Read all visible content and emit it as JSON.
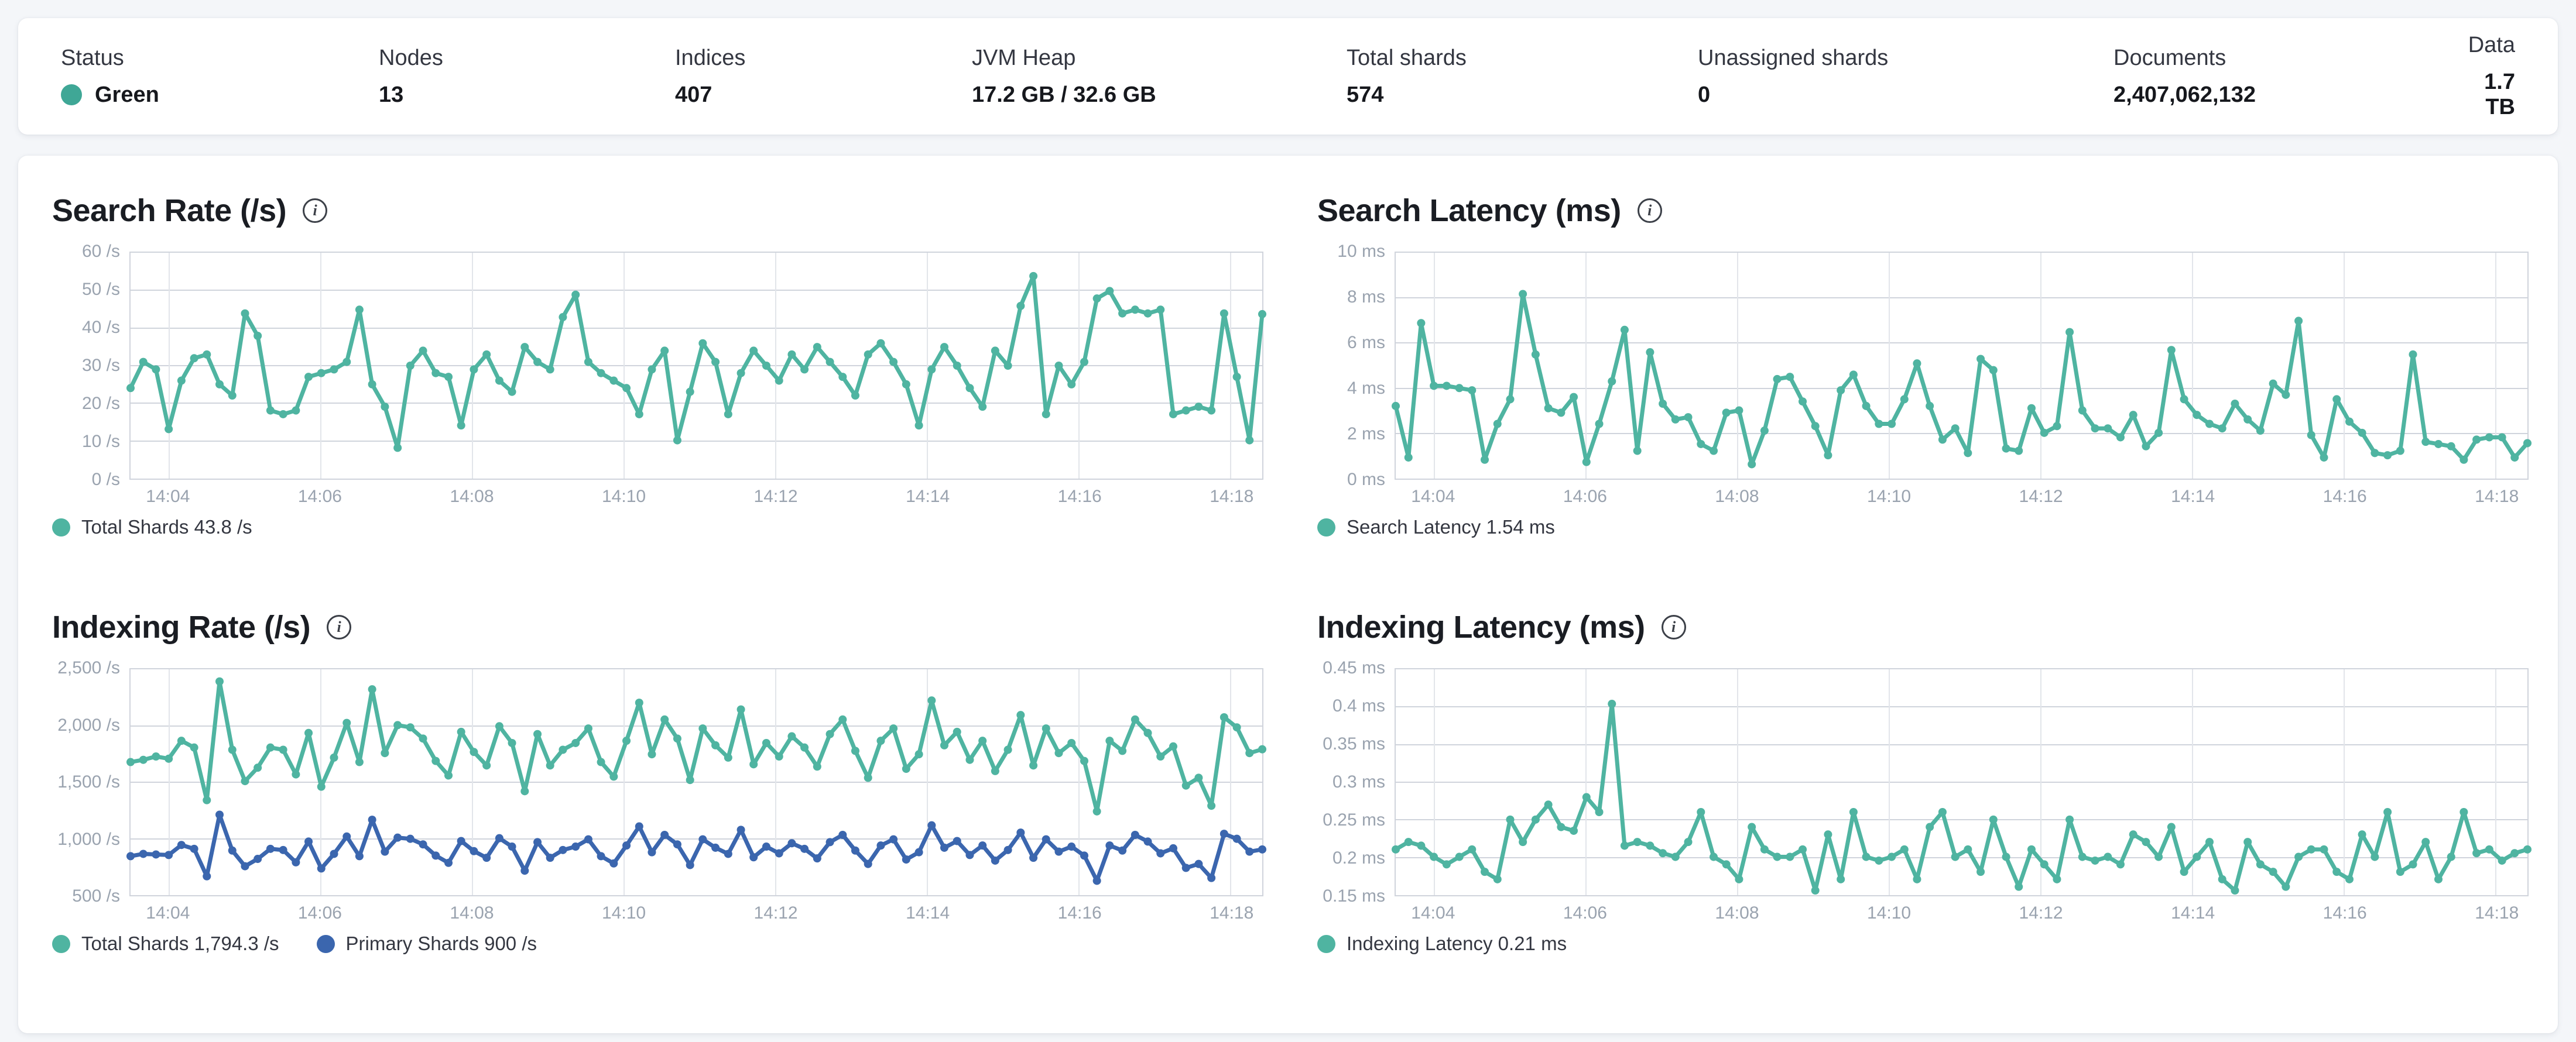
{
  "status_bar": {
    "status_color": "#3fa796",
    "stats": [
      {
        "label": "Status",
        "value": "Green",
        "has_dot": true
      },
      {
        "label": "Nodes",
        "value": "13"
      },
      {
        "label": "Indices",
        "value": "407"
      },
      {
        "label": "JVM Heap",
        "value": "17.2 GB / 32.6 GB"
      },
      {
        "label": "Total shards",
        "value": "574"
      },
      {
        "label": "Unassigned shards",
        "value": "0"
      },
      {
        "label": "Documents",
        "value": "2,407,062,132"
      },
      {
        "label": "Data",
        "value": "1.7 TB"
      }
    ]
  },
  "info_icon_glyph": "i",
  "chart_data": [
    {
      "id": "search-rate",
      "type": "line",
      "title": "Search Rate (/s)",
      "ylabel": "/s",
      "ylim": [
        0,
        60
      ],
      "grid": true,
      "legend_position": "bottom",
      "xrange": [
        "14:03:30",
        "14:18:25"
      ],
      "yticks": [
        {
          "v": 60,
          "label": "60 /s"
        },
        {
          "v": 50,
          "label": "50 /s"
        },
        {
          "v": 40,
          "label": "40 /s"
        },
        {
          "v": 30,
          "label": "30 /s"
        },
        {
          "v": 20,
          "label": "20 /s"
        },
        {
          "v": 10,
          "label": "10 /s"
        },
        {
          "v": 0,
          "label": "0 /s"
        }
      ],
      "xticks": [
        {
          "f": 0.034,
          "label": "14:04"
        },
        {
          "f": 0.168,
          "label": "14:06"
        },
        {
          "f": 0.302,
          "label": "14:08"
        },
        {
          "f": 0.436,
          "label": "14:10"
        },
        {
          "f": 0.57,
          "label": "14:12"
        },
        {
          "f": 0.704,
          "label": "14:14"
        },
        {
          "f": 0.838,
          "label": "14:16"
        },
        {
          "f": 0.972,
          "label": "14:18"
        }
      ],
      "series": [
        {
          "name": "Total Shards",
          "color": "#4fb4a1",
          "values": [
            24,
            31,
            29,
            13,
            26,
            32,
            33,
            25,
            22,
            44,
            38,
            18,
            17,
            18,
            27,
            28,
            29,
            31,
            45,
            25,
            19,
            8,
            30,
            34,
            28,
            27,
            14,
            29,
            33,
            26,
            23,
            35,
            31,
            29,
            43,
            49,
            31,
            28,
            26,
            24,
            17,
            29,
            34,
            10,
            23,
            36,
            31,
            17,
            28,
            34,
            30,
            26,
            33,
            29,
            35,
            31,
            27,
            22,
            33,
            36,
            31,
            25,
            14,
            29,
            35,
            30,
            24,
            19,
            34,
            30,
            46,
            54,
            17,
            30,
            25,
            31,
            48,
            50,
            44,
            45,
            44,
            45,
            17,
            18,
            19,
            18,
            44,
            27,
            10,
            43.8
          ]
        }
      ],
      "legend": [
        {
          "label": "Total Shards 43.8 /s",
          "color": "#4fb4a1"
        }
      ]
    },
    {
      "id": "search-latency",
      "type": "line",
      "title": "Search Latency (ms)",
      "ylabel": "ms",
      "ylim": [
        0,
        10
      ],
      "grid": true,
      "legend_position": "bottom",
      "xrange": [
        "14:03:30",
        "14:18:25"
      ],
      "yticks": [
        {
          "v": 10,
          "label": "10 ms"
        },
        {
          "v": 8,
          "label": "8 ms"
        },
        {
          "v": 6,
          "label": "6 ms"
        },
        {
          "v": 4,
          "label": "4 ms"
        },
        {
          "v": 2,
          "label": "2 ms"
        },
        {
          "v": 0,
          "label": "0 ms"
        }
      ],
      "xticks": [
        {
          "f": 0.034,
          "label": "14:04"
        },
        {
          "f": 0.168,
          "label": "14:06"
        },
        {
          "f": 0.302,
          "label": "14:08"
        },
        {
          "f": 0.436,
          "label": "14:10"
        },
        {
          "f": 0.57,
          "label": "14:12"
        },
        {
          "f": 0.704,
          "label": "14:14"
        },
        {
          "f": 0.838,
          "label": "14:16"
        },
        {
          "f": 0.972,
          "label": "14:18"
        }
      ],
      "series": [
        {
          "name": "Search Latency",
          "color": "#4fb4a1",
          "values": [
            3.2,
            0.9,
            6.9,
            4.1,
            4.1,
            4.0,
            3.9,
            0.8,
            2.4,
            3.5,
            8.2,
            5.5,
            3.1,
            2.9,
            3.6,
            0.7,
            2.4,
            4.3,
            6.6,
            1.2,
            5.6,
            3.3,
            2.6,
            2.7,
            1.5,
            1.2,
            2.9,
            3.0,
            0.6,
            2.1,
            4.4,
            4.5,
            3.4,
            2.3,
            1.0,
            3.9,
            4.6,
            3.2,
            2.4,
            2.4,
            3.5,
            5.1,
            3.2,
            1.7,
            2.2,
            1.1,
            5.3,
            4.8,
            1.3,
            1.2,
            3.1,
            2.0,
            2.3,
            6.5,
            3.0,
            2.2,
            2.2,
            1.8,
            2.8,
            1.4,
            2.0,
            5.7,
            3.5,
            2.8,
            2.4,
            2.2,
            3.3,
            2.6,
            2.1,
            4.2,
            3.7,
            7.0,
            1.9,
            0.9,
            3.5,
            2.5,
            2.0,
            1.1,
            1.0,
            1.2,
            5.5,
            1.6,
            1.5,
            1.4,
            0.8,
            1.7,
            1.8,
            1.8,
            0.9,
            1.54
          ]
        }
      ],
      "legend": [
        {
          "label": "Search Latency 1.54 ms",
          "color": "#4fb4a1"
        }
      ]
    },
    {
      "id": "indexing-rate",
      "type": "line",
      "title": "Indexing Rate (/s)",
      "ylabel": "/s",
      "ylim": [
        500,
        2500
      ],
      "grid": true,
      "legend_position": "bottom",
      "xrange": [
        "14:03:30",
        "14:18:25"
      ],
      "yticks": [
        {
          "v": 2500,
          "label": "2,500 /s"
        },
        {
          "v": 2000,
          "label": "2,000 /s"
        },
        {
          "v": 1500,
          "label": "1,500 /s"
        },
        {
          "v": 1000,
          "label": "1,000 /s"
        },
        {
          "v": 500,
          "label": "500 /s"
        }
      ],
      "xticks": [
        {
          "f": 0.034,
          "label": "14:04"
        },
        {
          "f": 0.168,
          "label": "14:06"
        },
        {
          "f": 0.302,
          "label": "14:08"
        },
        {
          "f": 0.436,
          "label": "14:10"
        },
        {
          "f": 0.57,
          "label": "14:12"
        },
        {
          "f": 0.704,
          "label": "14:14"
        },
        {
          "f": 0.838,
          "label": "14:16"
        },
        {
          "f": 0.972,
          "label": "14:18"
        }
      ],
      "series": [
        {
          "name": "Total Shards",
          "color": "#4fb4a1",
          "values": [
            1680,
            1700,
            1730,
            1710,
            1870,
            1810,
            1340,
            2400,
            1790,
            1510,
            1630,
            1810,
            1790,
            1570,
            1940,
            1460,
            1720,
            2030,
            1680,
            2330,
            1760,
            2010,
            1990,
            1890,
            1690,
            1560,
            1950,
            1770,
            1650,
            2000,
            1850,
            1420,
            1930,
            1650,
            1790,
            1850,
            1980,
            1680,
            1550,
            1870,
            2210,
            1750,
            2060,
            1890,
            1520,
            1980,
            1830,
            1720,
            2150,
            1660,
            1850,
            1730,
            1910,
            1810,
            1640,
            1930,
            2060,
            1780,
            1540,
            1870,
            1980,
            1620,
            1750,
            2230,
            1830,
            1950,
            1700,
            1870,
            1600,
            1790,
            2100,
            1650,
            1980,
            1760,
            1850,
            1690,
            1240,
            1870,
            1780,
            2060,
            1940,
            1730,
            1820,
            1470,
            1540,
            1290,
            2080,
            1990,
            1760,
            1794.3
          ]
        },
        {
          "name": "Primary Shards",
          "color": "#3b66ae",
          "values": [
            840,
            860,
            855,
            850,
            940,
            905,
            660,
            1210,
            890,
            750,
            815,
            905,
            895,
            785,
            970,
            730,
            860,
            1015,
            840,
            1165,
            880,
            1005,
            995,
            945,
            845,
            780,
            975,
            885,
            825,
            1000,
            925,
            710,
            965,
            825,
            895,
            925,
            990,
            840,
            775,
            935,
            1105,
            875,
            1030,
            945,
            760,
            990,
            915,
            860,
            1075,
            830,
            925,
            865,
            955,
            905,
            820,
            965,
            1030,
            890,
            770,
            935,
            990,
            810,
            875,
            1115,
            915,
            975,
            850,
            935,
            800,
            895,
            1050,
            825,
            990,
            880,
            925,
            845,
            620,
            935,
            890,
            1030,
            970,
            865,
            910,
            735,
            770,
            645,
            1040,
            995,
            880,
            900
          ]
        }
      ],
      "legend": [
        {
          "label": "Total Shards 1,794.3 /s",
          "color": "#4fb4a1"
        },
        {
          "label": "Primary Shards 900 /s",
          "color": "#3b66ae"
        }
      ]
    },
    {
      "id": "indexing-latency",
      "type": "line",
      "title": "Indexing Latency (ms)",
      "ylabel": "ms",
      "ylim": [
        0.15,
        0.45
      ],
      "grid": true,
      "legend_position": "bottom",
      "xrange": [
        "14:03:30",
        "14:18:25"
      ],
      "yticks": [
        {
          "v": 0.45,
          "label": "0.45 ms"
        },
        {
          "v": 0.4,
          "label": "0.4 ms"
        },
        {
          "v": 0.35,
          "label": "0.35 ms"
        },
        {
          "v": 0.3,
          "label": "0.3 ms"
        },
        {
          "v": 0.25,
          "label": "0.25 ms"
        },
        {
          "v": 0.2,
          "label": "0.2 ms"
        },
        {
          "v": 0.15,
          "label": "0.15 ms"
        }
      ],
      "xticks": [
        {
          "f": 0.034,
          "label": "14:04"
        },
        {
          "f": 0.168,
          "label": "14:06"
        },
        {
          "f": 0.302,
          "label": "14:08"
        },
        {
          "f": 0.436,
          "label": "14:10"
        },
        {
          "f": 0.57,
          "label": "14:12"
        },
        {
          "f": 0.704,
          "label": "14:14"
        },
        {
          "f": 0.838,
          "label": "14:16"
        },
        {
          "f": 0.972,
          "label": "14:18"
        }
      ],
      "series": [
        {
          "name": "Indexing Latency",
          "color": "#4fb4a1",
          "values": [
            0.21,
            0.22,
            0.215,
            0.2,
            0.19,
            0.2,
            0.21,
            0.18,
            0.17,
            0.25,
            0.22,
            0.25,
            0.27,
            0.24,
            0.235,
            0.28,
            0.26,
            0.405,
            0.215,
            0.22,
            0.215,
            0.205,
            0.2,
            0.22,
            0.26,
            0.2,
            0.19,
            0.17,
            0.24,
            0.21,
            0.2,
            0.2,
            0.21,
            0.155,
            0.23,
            0.17,
            0.26,
            0.2,
            0.195,
            0.2,
            0.21,
            0.17,
            0.24,
            0.26,
            0.2,
            0.21,
            0.18,
            0.25,
            0.2,
            0.16,
            0.21,
            0.19,
            0.17,
            0.25,
            0.2,
            0.195,
            0.2,
            0.19,
            0.23,
            0.22,
            0.2,
            0.24,
            0.18,
            0.2,
            0.22,
            0.17,
            0.155,
            0.22,
            0.19,
            0.18,
            0.16,
            0.2,
            0.21,
            0.21,
            0.18,
            0.17,
            0.23,
            0.2,
            0.26,
            0.18,
            0.19,
            0.22,
            0.17,
            0.2,
            0.26,
            0.205,
            0.21,
            0.195,
            0.205,
            0.21
          ]
        }
      ],
      "legend": [
        {
          "label": "Indexing Latency 0.21 ms",
          "color": "#4fb4a1"
        }
      ]
    }
  ]
}
